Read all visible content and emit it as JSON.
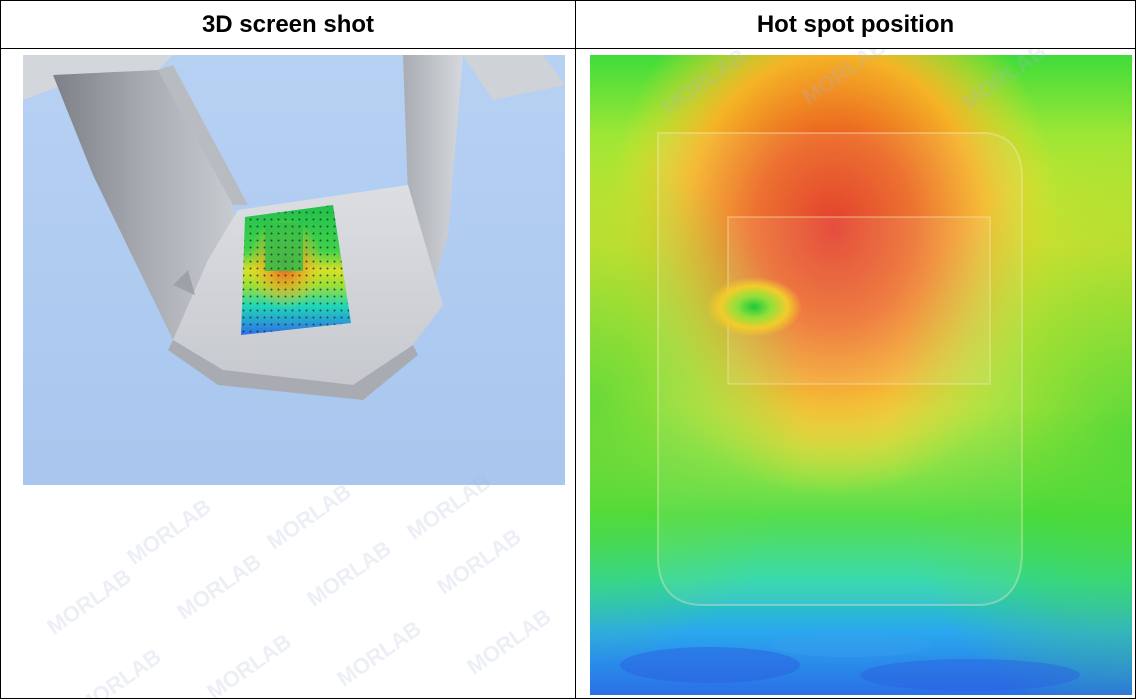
{
  "table": {
    "headers": [
      "3D screen shot",
      "Hot spot position"
    ]
  },
  "watermark": {
    "text": "MORLAB"
  },
  "colors": {
    "background_blue": "#a9c8ef",
    "phone_grey": "#c7cbd1",
    "hot": "#e53a1f",
    "cold": "#1a7fe8"
  }
}
